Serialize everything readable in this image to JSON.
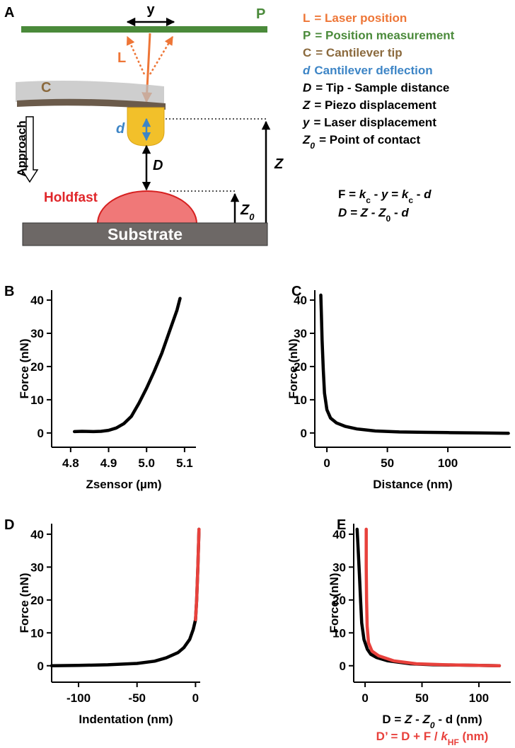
{
  "diagram": {
    "label": "A",
    "labels": {
      "y": "y",
      "P": "P",
      "L": "L",
      "C": "C",
      "d": "d",
      "D": "D",
      "Z": "Z",
      "approach": "Approach",
      "holdfast": "Holdfast",
      "substrate": "Substrate",
      "z0": [
        "Z",
        "0"
      ]
    },
    "legend": [
      {
        "symbol": "L",
        "text": "= Laser position",
        "color": "#ee7637"
      },
      {
        "symbol": "P",
        "text": "= Position measurement",
        "color": "#4a8a3a"
      },
      {
        "symbol": "C",
        "text": "= Cantilever tip",
        "color": "#8b6a3e"
      },
      {
        "symbol": "d",
        "text": "Cantilever deflection",
        "color": "#3d85c6",
        "italic": true
      },
      {
        "symbol": "D",
        "text": "= Tip - Sample distance",
        "color": "#000000",
        "italic": true
      },
      {
        "symbol": "Z",
        "text": "= Piezo displacement",
        "color": "#000000",
        "italic": true
      },
      {
        "symbol": "y",
        "text": "= Laser displacement",
        "color": "#000000",
        "italic": true
      },
      {
        "symbol": "Z",
        "sub": "0",
        "text": "= Point of contact",
        "color": "#000000",
        "italic": true
      }
    ],
    "equations": [
      [
        {
          "t": "F = "
        },
        {
          "t": "k",
          "i": true
        },
        {
          "t": "c",
          "sub": true
        },
        {
          "t": " - "
        },
        {
          "t": "y",
          "i": true
        },
        {
          "t": " = "
        },
        {
          "t": "k",
          "i": true
        },
        {
          "t": "c",
          "sub": true
        },
        {
          "t": " - "
        },
        {
          "t": "d",
          "i": true
        }
      ],
      [
        {
          "t": "D = Z - Z",
          "i": true
        },
        {
          "t": "0",
          "sub": true
        },
        {
          "t": " - "
        },
        {
          "t": "d",
          "i": true
        }
      ]
    ]
  },
  "chart_data": [
    {
      "type": "line",
      "label": "B",
      "xlabel": "Zsensor (µm)",
      "ylabel": "Force (nN)",
      "xlim": [
        4.75,
        5.13
      ],
      "ylim": [
        -4.3,
        43
      ],
      "xticks": [
        4.8,
        4.9,
        {
          "value": 5,
          "label": "5.0"
        },
        5.1
      ],
      "yticks": [
        0,
        10,
        20,
        30,
        40
      ],
      "series": [
        {
          "color": "#000000",
          "x": [
            4.81,
            4.83,
            4.86,
            4.88,
            4.9,
            4.92,
            4.94,
            4.96,
            4.98,
            5.0,
            5.02,
            5.04,
            5.06,
            5.08,
            5.088
          ],
          "values": [
            0.4,
            0.5,
            0.4,
            0.5,
            0.8,
            1.5,
            2.8,
            5,
            9,
            13.5,
            18.5,
            24,
            30.5,
            37,
            40.5
          ]
        }
      ]
    },
    {
      "type": "line",
      "label": "C",
      "xlabel": "Distance (nm)",
      "ylabel": "Force (nN)",
      "xlim": [
        -10,
        152
      ],
      "ylim": [
        -4.3,
        43
      ],
      "xticks": [
        0,
        50,
        100
      ],
      "yticks": [
        0,
        10,
        20,
        30,
        40
      ],
      "series": [
        {
          "color": "#000000",
          "x": [
            -5,
            -4.5,
            -4,
            -3,
            -2,
            0,
            3,
            8,
            15,
            25,
            40,
            60,
            80,
            100,
            125,
            150
          ],
          "values": [
            41.5,
            35,
            28,
            19,
            12,
            7,
            4.5,
            3,
            2,
            1.2,
            0.6,
            0.3,
            0.2,
            0.1,
            0,
            -0.1
          ]
        }
      ]
    },
    {
      "type": "line",
      "label": "D",
      "xlabel": "Indentation (nm)",
      "ylabel": "Force (nN)",
      "xlim": [
        -123,
        4
      ],
      "ylim": [
        -5,
        43.2
      ],
      "xticks": [
        -100,
        -50,
        0
      ],
      "yticks": [
        0,
        10,
        20,
        30,
        40
      ],
      "series": [
        {
          "color": "#000000",
          "x": [
            -123,
            -100,
            -75,
            -50,
            -35,
            -25,
            -15,
            -10,
            -5,
            -2,
            0,
            1,
            2,
            3
          ],
          "values": [
            0,
            0.1,
            0.3,
            0.7,
            1.4,
            2.4,
            4,
            5.5,
            8,
            11,
            14,
            20,
            30,
            41.5
          ]
        },
        {
          "color": "#e8413c",
          "x": [
            0,
            1,
            2,
            3
          ],
          "values": [
            14,
            20,
            30,
            41.5
          ]
        }
      ]
    },
    {
      "type": "line",
      "label": "E",
      "ylabel": "Force (nN)",
      "xlabel": [
        [
          {
            "t": "D = "
          },
          {
            "t": "Z",
            "i": true
          },
          {
            "t": " - "
          },
          {
            "t": "Z",
            "i": true
          },
          {
            "t": "0",
            "sub": true,
            "i": true
          },
          {
            "t": " - d (nm)"
          }
        ],
        [
          {
            "t": "D’ = D + F / "
          },
          {
            "t": "k",
            "i": true
          },
          {
            "t": "HF",
            "sub": true
          },
          {
            "t": " (nm)"
          }
        ]
      ],
      "xlim": [
        -10,
        128
      ],
      "ylim": [
        -5,
        43.2
      ],
      "xticks": [
        0,
        50,
        100
      ],
      "yticks": [
        0,
        10,
        20,
        30,
        40
      ],
      "series": [
        {
          "color": "#000000",
          "x": [
            -7,
            -6,
            -5,
            -4,
            -3,
            -1,
            2,
            5,
            10,
            20,
            40,
            60,
            80,
            100,
            118
          ],
          "values": [
            41.5,
            35,
            28,
            20,
            13,
            8,
            5,
            3.5,
            2.5,
            1.5,
            0.6,
            0.3,
            0.2,
            0.1,
            0
          ]
        },
        {
          "color": "#e8413c",
          "x": [
            1,
            1,
            1.3,
            1.8,
            3,
            6,
            12,
            25,
            45,
            70,
            100,
            118
          ],
          "values": [
            41.5,
            30,
            20,
            12,
            7,
            4.5,
            3,
            1.5,
            0.6,
            0.3,
            0.1,
            0
          ]
        }
      ]
    }
  ]
}
